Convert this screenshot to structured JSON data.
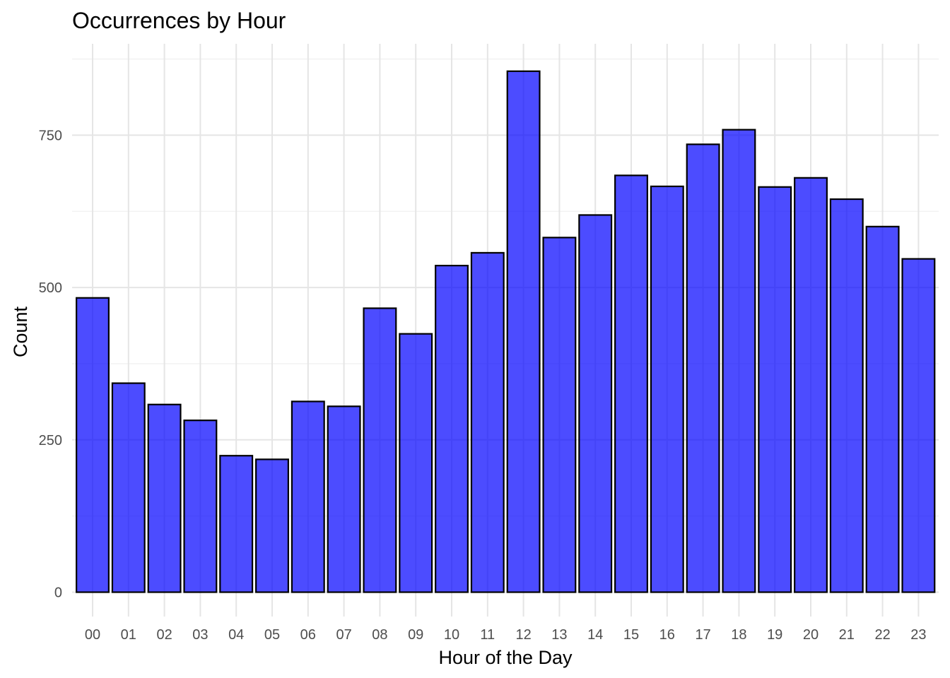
{
  "chart_data": {
    "type": "bar",
    "title": "Occurrences by Hour",
    "xlabel": "Hour of the Day",
    "ylabel": "Count",
    "categories": [
      "00",
      "01",
      "02",
      "03",
      "04",
      "05",
      "06",
      "07",
      "08",
      "09",
      "10",
      "11",
      "12",
      "13",
      "14",
      "15",
      "16",
      "17",
      "18",
      "19",
      "20",
      "21",
      "22",
      "23"
    ],
    "values": [
      483,
      343,
      308,
      282,
      224,
      218,
      313,
      305,
      466,
      424,
      536,
      557,
      855,
      582,
      619,
      684,
      666,
      735,
      759,
      665,
      680,
      645,
      600,
      547
    ],
    "yticks": [
      0,
      250,
      500,
      750
    ],
    "ylim": [
      -40,
      900
    ],
    "grid": true,
    "legend": "none",
    "bar_color": "#0000ff",
    "bar_opacity": 0.7,
    "bar_edge_color": "#000000"
  }
}
